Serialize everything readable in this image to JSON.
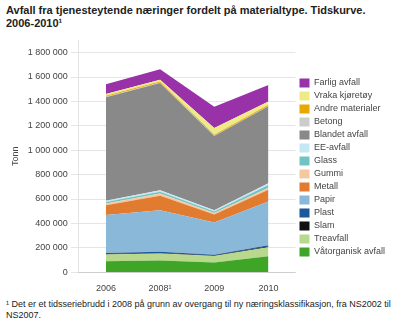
{
  "chart_data": {
    "type": "area",
    "title": "Avfall fra tjenesteytende næringer fordelt på materialtype. Tidskurve.",
    "subtitle": "2006-2010¹",
    "ylabel": "Tonn",
    "footnote": "¹ Det er et tidsseriebrudd i 2008 på grunn av overgang til ny næringsklassifikasjon, fra NS2002 til NS2007.",
    "categories": [
      "2006",
      "2008¹",
      "2009",
      "2010"
    ],
    "stacked": true,
    "grid": true,
    "legend": "right",
    "ylim": [
      0,
      1900000
    ],
    "yticks": [
      0,
      {
        "value": 200000,
        "label": "200 000"
      },
      {
        "value": 400000,
        "label": "400 000"
      },
      {
        "value": 600000,
        "label": "600 000"
      },
      {
        "value": 800000,
        "label": "800 000"
      },
      {
        "value": 1000000,
        "label": "1 000 000"
      },
      {
        "value": 1200000,
        "label": "1 200 000"
      },
      {
        "value": 1400000,
        "label": "1 400 000"
      },
      {
        "value": 1600000,
        "label": "1 600 000"
      },
      {
        "value": 1800000,
        "label": "1 800 000"
      }
    ],
    "series": [
      {
        "name": "Våtorganisk avfall",
        "color": "#3ea527",
        "values": [
          90000,
          95000,
          80000,
          130000
        ]
      },
      {
        "name": "Treavfall",
        "color": "#b8d98d",
        "values": [
          55000,
          58000,
          52000,
          75000
        ]
      },
      {
        "name": "Slam",
        "color": "#111111",
        "values": [
          5000,
          5000,
          4000,
          6000
        ]
      },
      {
        "name": "Plast",
        "color": "#1c5799",
        "values": [
          8000,
          9000,
          7000,
          9000
        ]
      },
      {
        "name": "Papir",
        "color": "#8ab8d9",
        "values": [
          310000,
          340000,
          265000,
          360000
        ]
      },
      {
        "name": "Metall",
        "color": "#e07b30",
        "values": [
          80000,
          120000,
          65000,
          95000
        ]
      },
      {
        "name": "Gummi",
        "color": "#f5c9a0",
        "values": [
          15000,
          18000,
          13000,
          18000
        ]
      },
      {
        "name": "Glass",
        "color": "#72c4c4",
        "values": [
          12000,
          14000,
          11000,
          22000
        ]
      },
      {
        "name": "EE-avfall",
        "color": "#c5e8f5",
        "values": [
          10000,
          12000,
          10000,
          15000
        ]
      },
      {
        "name": "Blandet avfall",
        "color": "#898989",
        "values": [
          850000,
          880000,
          610000,
          630000
        ]
      },
      {
        "name": "Betong",
        "color": "#cccccc",
        "values": [
          3000,
          3000,
          2000,
          3000
        ]
      },
      {
        "name": "Andre materialer",
        "color": "#e8a800",
        "values": [
          8000,
          9000,
          7000,
          9000
        ]
      },
      {
        "name": "Vraka kjøretøy",
        "color": "#eeeb87",
        "values": [
          14000,
          15000,
          55000,
          28000
        ]
      },
      {
        "name": "Farlig avfall",
        "color": "#9932a8",
        "values": [
          80000,
          85000,
          175000,
          135000
        ]
      }
    ]
  }
}
